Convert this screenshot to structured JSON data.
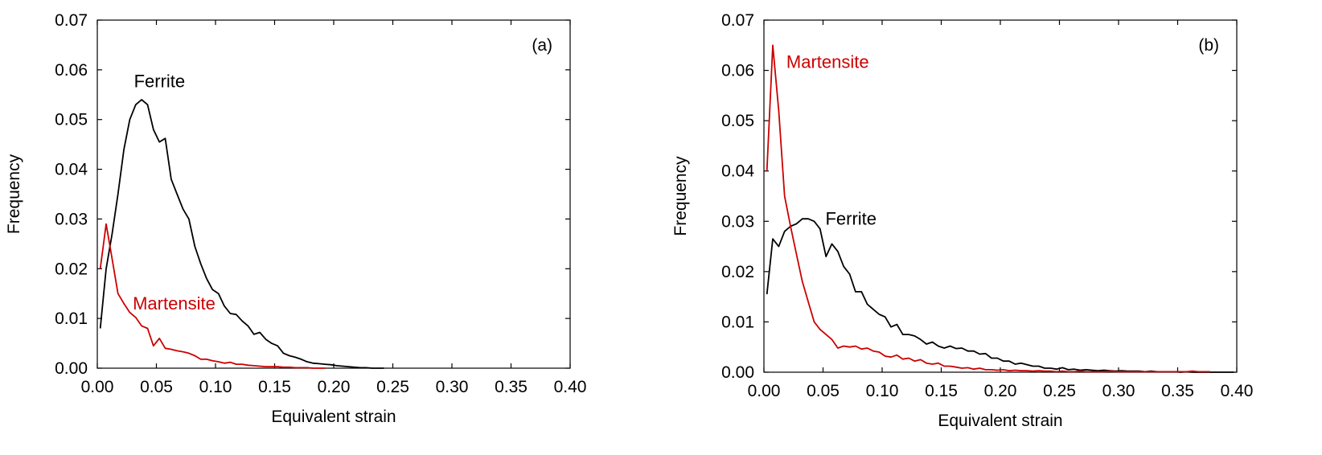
{
  "colors": {
    "ferrite": "#000000",
    "martensite": "#cc0000",
    "axis": "#000000"
  },
  "chart_data": [
    {
      "type": "line",
      "panel_label": "(a)",
      "xlabel": "Equivalent strain",
      "ylabel": "Frequency",
      "xlim": [
        0,
        0.4
      ],
      "ylim": [
        0,
        0.07
      ],
      "xticks": [
        "0.00",
        "0.05",
        "0.10",
        "0.15",
        "0.20",
        "0.25",
        "0.30",
        "0.35",
        "0.40"
      ],
      "yticks": [
        "0.00",
        "0.01",
        "0.02",
        "0.03",
        "0.04",
        "0.05",
        "0.06",
        "0.07"
      ],
      "series": [
        {
          "name": "Ferrite",
          "color": "#000000",
          "label_at": [
            0.031,
            0.0565
          ],
          "x": [
            0.0025,
            0.0075,
            0.0125,
            0.0175,
            0.0225,
            0.0275,
            0.0325,
            0.0375,
            0.0425,
            0.0475,
            0.0525,
            0.0575,
            0.0625,
            0.0675,
            0.0725,
            0.0775,
            0.0825,
            0.0875,
            0.0925,
            0.0975,
            0.1025,
            0.1075,
            0.1125,
            0.1175,
            0.1225,
            0.1275,
            0.1325,
            0.1375,
            0.1425,
            0.1475,
            0.1525,
            0.1575,
            0.1625,
            0.1675,
            0.1725,
            0.1775,
            0.1825,
            0.1875,
            0.1925,
            0.1975,
            0.2025,
            0.2075,
            0.2125,
            0.2175,
            0.2225,
            0.2275,
            0.2325,
            0.2375,
            0.2425
          ],
          "y": [
            0.008,
            0.02,
            0.027,
            0.035,
            0.044,
            0.05,
            0.053,
            0.054,
            0.053,
            0.048,
            0.0455,
            0.0462,
            0.038,
            0.035,
            0.032,
            0.03,
            0.0245,
            0.021,
            0.018,
            0.0158,
            0.015,
            0.0125,
            0.011,
            0.0108,
            0.0095,
            0.0085,
            0.0068,
            0.0072,
            0.0058,
            0.005,
            0.0045,
            0.003,
            0.0025,
            0.0022,
            0.0018,
            0.0013,
            0.001,
            0.0009,
            0.0008,
            0.0007,
            0.0005,
            0.0004,
            0.0003,
            0.0002,
            0.0001,
            0.0001,
            0.0,
            0.0,
            0.0
          ]
        },
        {
          "name": "Martensite",
          "color": "#cc0000",
          "label_at": [
            0.03,
            0.0118
          ],
          "x": [
            0.0025,
            0.0075,
            0.0125,
            0.0175,
            0.0225,
            0.0275,
            0.0325,
            0.0375,
            0.0425,
            0.0475,
            0.0525,
            0.0575,
            0.0625,
            0.0675,
            0.0725,
            0.0775,
            0.0825,
            0.0875,
            0.0925,
            0.0975,
            0.1025,
            0.1075,
            0.1125,
            0.1175,
            0.1225,
            0.1275,
            0.1325,
            0.1375,
            0.1425,
            0.1475,
            0.1525,
            0.1575,
            0.1625,
            0.1675,
            0.1725,
            0.1775,
            0.1825,
            0.1875,
            0.1925
          ],
          "y": [
            0.02,
            0.029,
            0.022,
            0.015,
            0.013,
            0.0112,
            0.0102,
            0.0085,
            0.008,
            0.0045,
            0.006,
            0.004,
            0.0038,
            0.0035,
            0.0033,
            0.003,
            0.0025,
            0.0018,
            0.0018,
            0.0015,
            0.0013,
            0.001,
            0.0012,
            0.0008,
            0.0008,
            0.0006,
            0.0005,
            0.0004,
            0.0003,
            0.0003,
            0.0003,
            0.0002,
            0.0002,
            0.0001,
            0.0001,
            0.0001,
            0.0,
            0.0,
            0.0
          ]
        }
      ]
    },
    {
      "type": "line",
      "panel_label": "(b)",
      "xlabel": "Equivalent strain",
      "ylabel": "Frequency",
      "xlim": [
        0,
        0.4
      ],
      "ylim": [
        0,
        0.07
      ],
      "xticks": [
        "0.00",
        "0.05",
        "0.10",
        "0.15",
        "0.20",
        "0.25",
        "0.30",
        "0.35",
        "0.40"
      ],
      "yticks": [
        "0.00",
        "0.01",
        "0.02",
        "0.03",
        "0.04",
        "0.05",
        "0.06",
        "0.07"
      ],
      "series": [
        {
          "name": "Ferrite",
          "color": "#000000",
          "label_at": [
            0.052,
            0.0293
          ],
          "x": [
            0.0025,
            0.0075,
            0.0125,
            0.0175,
            0.0225,
            0.0275,
            0.0325,
            0.0375,
            0.0425,
            0.0475,
            0.0525,
            0.0575,
            0.0625,
            0.0675,
            0.0725,
            0.0775,
            0.0825,
            0.0875,
            0.0925,
            0.0975,
            0.1025,
            0.1075,
            0.1125,
            0.1175,
            0.1225,
            0.1275,
            0.1325,
            0.1375,
            0.1425,
            0.1475,
            0.1525,
            0.1575,
            0.1625,
            0.1675,
            0.1725,
            0.1775,
            0.1825,
            0.1875,
            0.1925,
            0.1975,
            0.2025,
            0.2075,
            0.2125,
            0.2175,
            0.2225,
            0.2275,
            0.2325,
            0.2375,
            0.2425,
            0.2475,
            0.2525,
            0.2575,
            0.2625,
            0.2675,
            0.2725,
            0.2775,
            0.2825,
            0.2875,
            0.2925,
            0.2975,
            0.3025,
            0.3075,
            0.3125,
            0.3175,
            0.3225,
            0.3275,
            0.3325,
            0.3375,
            0.3425,
            0.3475,
            0.3525,
            0.3575,
            0.3625,
            0.3675,
            0.3725,
            0.3775,
            0.3825,
            0.3875,
            0.3925,
            0.3975
          ],
          "y": [
            0.0155,
            0.0265,
            0.025,
            0.028,
            0.029,
            0.0295,
            0.0305,
            0.0305,
            0.03,
            0.0285,
            0.023,
            0.0255,
            0.024,
            0.021,
            0.0195,
            0.016,
            0.016,
            0.0135,
            0.0125,
            0.0115,
            0.011,
            0.009,
            0.0095,
            0.0075,
            0.0075,
            0.0072,
            0.0065,
            0.0056,
            0.006,
            0.0052,
            0.0048,
            0.0052,
            0.0047,
            0.0048,
            0.0042,
            0.0042,
            0.0036,
            0.0037,
            0.0028,
            0.0028,
            0.0022,
            0.0022,
            0.0016,
            0.0018,
            0.0015,
            0.0012,
            0.0012,
            0.0008,
            0.0008,
            0.0006,
            0.0009,
            0.0005,
            0.0006,
            0.0004,
            0.0005,
            0.0004,
            0.0003,
            0.0004,
            0.0003,
            0.0002,
            0.0003,
            0.0002,
            0.0002,
            0.0002,
            0.0001,
            0.0002,
            0.0001,
            0.0001,
            0.0001,
            0.0001,
            0.0,
            0.0001,
            0.0,
            0.0,
            0.0,
            0.0,
            0.0,
            0.0,
            0.0,
            0.0
          ]
        },
        {
          "name": "Martensite",
          "color": "#cc0000",
          "label_at": [
            0.019,
            0.0605
          ],
          "x": [
            0.0025,
            0.0075,
            0.0125,
            0.0175,
            0.0225,
            0.0275,
            0.0325,
            0.0375,
            0.0425,
            0.0475,
            0.0525,
            0.0575,
            0.0625,
            0.0675,
            0.0725,
            0.0775,
            0.0825,
            0.0875,
            0.0925,
            0.0975,
            0.1025,
            0.1075,
            0.1125,
            0.1175,
            0.1225,
            0.1275,
            0.1325,
            0.1375,
            0.1425,
            0.1475,
            0.1525,
            0.1575,
            0.1625,
            0.1675,
            0.1725,
            0.1775,
            0.1825,
            0.1875,
            0.1925,
            0.1975,
            0.2025,
            0.2075,
            0.2125,
            0.2175,
            0.2225,
            0.2275,
            0.2325,
            0.2375,
            0.2425,
            0.2475,
            0.2525,
            0.2575,
            0.2625,
            0.2675,
            0.2725,
            0.2775,
            0.2825,
            0.2875,
            0.2925,
            0.2975,
            0.3025,
            0.3075,
            0.3125,
            0.3175,
            0.3225,
            0.3275,
            0.3325,
            0.3375,
            0.3425,
            0.3475,
            0.3525,
            0.3575,
            0.3625,
            0.3675,
            0.3725,
            0.3775
          ],
          "y": [
            0.04,
            0.065,
            0.052,
            0.035,
            0.029,
            0.0235,
            0.018,
            0.014,
            0.01,
            0.0085,
            0.0075,
            0.0065,
            0.0048,
            0.0052,
            0.005,
            0.0052,
            0.0046,
            0.0048,
            0.0042,
            0.004,
            0.0032,
            0.003,
            0.0034,
            0.0026,
            0.0028,
            0.0022,
            0.0025,
            0.0018,
            0.0016,
            0.0018,
            0.0012,
            0.0012,
            0.001,
            0.0008,
            0.0009,
            0.0006,
            0.0008,
            0.0005,
            0.0005,
            0.0004,
            0.0005,
            0.0003,
            0.0004,
            0.0003,
            0.0003,
            0.0002,
            0.0003,
            0.0002,
            0.0002,
            0.0001,
            0.0002,
            0.0001,
            0.0001,
            0.0002,
            0.0001,
            0.0001,
            0.0001,
            0.0001,
            0.0002,
            0.0001,
            0.0001,
            0.0001,
            0.0001,
            0.0001,
            0.0001,
            0.0001,
            0.0001,
            0.0001,
            0.0001,
            0.0001,
            0.0001,
            0.0001,
            0.0002,
            0.0001,
            0.0001,
            0.0001
          ]
        }
      ]
    }
  ]
}
